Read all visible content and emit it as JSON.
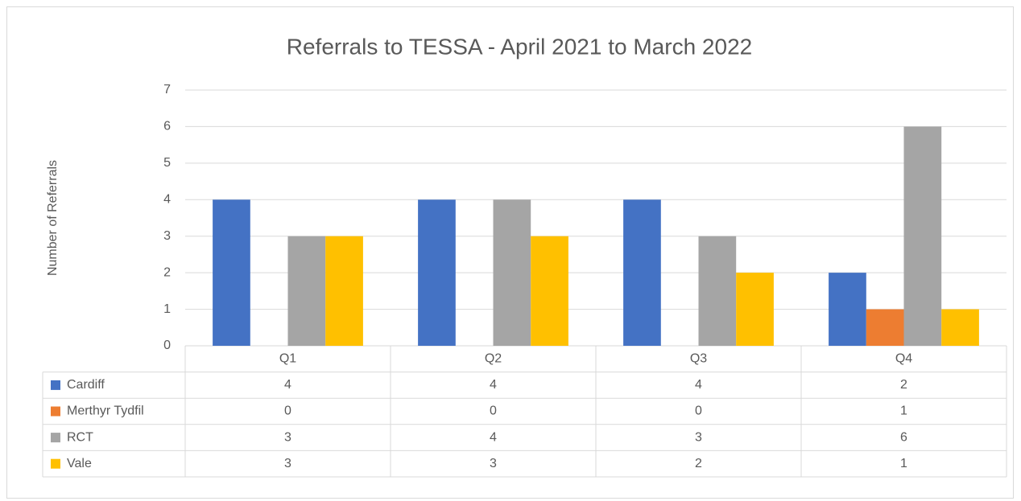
{
  "chart_data": {
    "type": "bar",
    "title": "Referrals to TESSA - April 2021 to March 2022",
    "y_label": "Number of Referrals",
    "categories": [
      "Q1",
      "Q2",
      "Q3",
      "Q4"
    ],
    "series": [
      {
        "name": "Cardiff",
        "color": "#4472c4",
        "values": [
          4,
          4,
          4,
          2
        ]
      },
      {
        "name": "Merthyr Tydfil",
        "color": "#ed7d31",
        "values": [
          0,
          0,
          0,
          1
        ]
      },
      {
        "name": "RCT",
        "color": "#a5a5a5",
        "values": [
          3,
          4,
          3,
          6
        ]
      },
      {
        "name": "Vale",
        "color": "#ffc000",
        "values": [
          3,
          3,
          2,
          1
        ]
      }
    ],
    "ylim": [
      0,
      7
    ],
    "yticks": [
      0,
      1,
      2,
      3,
      4,
      5,
      6,
      7
    ],
    "grid": true,
    "data_table": true
  }
}
